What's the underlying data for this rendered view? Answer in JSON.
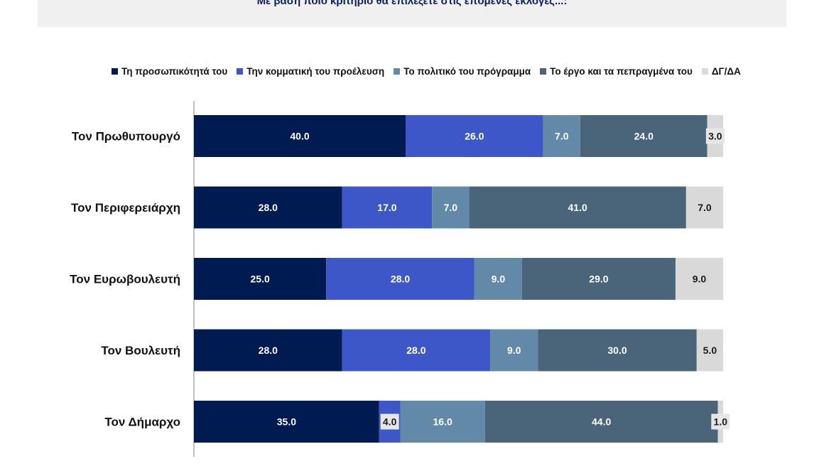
{
  "chart_data": {
    "type": "bar",
    "orientation": "horizontal",
    "stacked": true,
    "title": "Με βάση ποιο κριτήριο θα επιλέξετε στις επόμενες εκλογές...:",
    "xlabel": "",
    "ylabel": "",
    "xlim": [
      0,
      100
    ],
    "grid": false,
    "legend_position": "top",
    "categories": [
      "Τον Πρωθυπουργό",
      "Τον Περιφερειάρχη",
      "Τον Ευρωβουλευτή",
      "Τον Βουλευτή",
      "Τον Δήμαρχο"
    ],
    "series": [
      {
        "name": "Τη προσωπικότητά του",
        "color": "#001a52",
        "label_color": "#ffffff",
        "values": [
          40.0,
          28.0,
          25.0,
          28.0,
          35.0
        ]
      },
      {
        "name": "Την κομματική του προέλευση",
        "color": "#3d57c8",
        "label_color": "#ffffff",
        "values": [
          26.0,
          17.0,
          28.0,
          28.0,
          4.0
        ]
      },
      {
        "name": "Το πολιτικό του πρόγραμμα",
        "color": "#6389a8",
        "label_color": "#ffffff",
        "values": [
          7.0,
          7.0,
          9.0,
          9.0,
          16.0
        ]
      },
      {
        "name": "Το έργο και τα πεπραγμένα του",
        "color": "#4a6579",
        "label_color": "#ffffff",
        "values": [
          24.0,
          41.0,
          29.0,
          30.0,
          44.0
        ]
      },
      {
        "name": "ΔΓ/ΔΑ",
        "color": "#d9d9d9",
        "label_color": "#1a1a1a",
        "values": [
          3.0,
          7.0,
          9.0,
          5.0,
          1.0
        ]
      }
    ]
  }
}
